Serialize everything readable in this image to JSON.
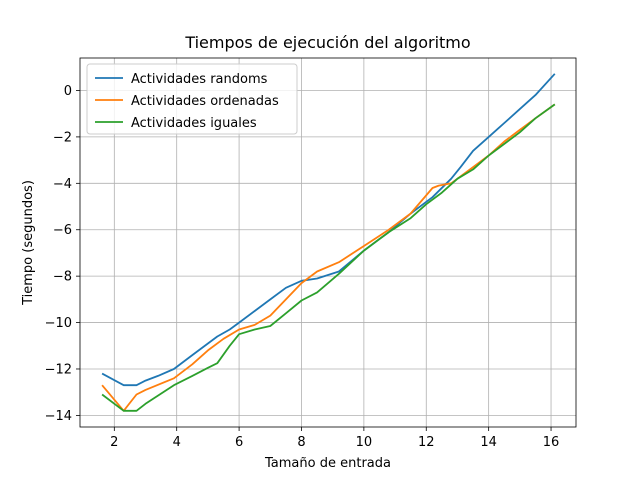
{
  "chart_data": {
    "type": "line",
    "title": "Tiempos de ejecución del algoritmo",
    "xlabel": "Tamaño de entrada",
    "ylabel": "Tiempo (segundos)",
    "xlim": [
      0.9,
      16.8
    ],
    "ylim": [
      -14.5,
      1.4
    ],
    "xticks": [
      2,
      4,
      6,
      8,
      10,
      12,
      14,
      16
    ],
    "yticks": [
      0,
      -2,
      -4,
      -6,
      -8,
      -10,
      -12,
      -14
    ],
    "grid": true,
    "legend_position": "top-left",
    "series": [
      {
        "name": "Actividades randoms",
        "color": "#1f77b4",
        "x": [
          1.61,
          2.3,
          2.71,
          3.0,
          3.4,
          3.91,
          4.5,
          5.0,
          5.3,
          5.7,
          6.0,
          6.5,
          7.0,
          7.5,
          8.0,
          8.5,
          9.2,
          10.0,
          10.8,
          11.5,
          12.2,
          12.8,
          13.1,
          13.5,
          14.0,
          14.5,
          15.0,
          15.5,
          16.12
        ],
        "y": [
          -12.2,
          -12.7,
          -12.7,
          -12.5,
          -12.3,
          -12.0,
          -11.4,
          -10.9,
          -10.6,
          -10.3,
          -10.0,
          -9.5,
          -9.0,
          -8.5,
          -8.2,
          -8.1,
          -7.8,
          -6.9,
          -6.1,
          -5.3,
          -4.6,
          -3.8,
          -3.3,
          -2.6,
          -2.0,
          -1.4,
          -0.8,
          -0.2,
          0.72
        ]
      },
      {
        "name": "Actividades ordenadas",
        "color": "#ff7f0e",
        "x": [
          1.61,
          2.3,
          2.71,
          3.0,
          3.91,
          4.5,
          5.0,
          5.5,
          6.0,
          6.5,
          7.0,
          7.5,
          8.0,
          8.5,
          9.2,
          10.0,
          10.8,
          11.5,
          12.2,
          12.4,
          12.8,
          13.1,
          13.5,
          14.0,
          14.5,
          15.0,
          15.5,
          16.12
        ],
        "y": [
          -12.7,
          -13.8,
          -13.1,
          -12.9,
          -12.4,
          -11.8,
          -11.2,
          -10.7,
          -10.3,
          -10.1,
          -9.7,
          -9.0,
          -8.3,
          -7.8,
          -7.4,
          -6.7,
          -6.0,
          -5.3,
          -4.2,
          -4.1,
          -4.0,
          -3.7,
          -3.3,
          -2.8,
          -2.2,
          -1.7,
          -1.2,
          -0.6
        ]
      },
      {
        "name": "Actividades iguales",
        "color": "#2ca02c",
        "x": [
          1.61,
          2.3,
          2.71,
          3.0,
          3.91,
          4.5,
          5.0,
          5.3,
          5.7,
          6.0,
          6.5,
          7.0,
          7.5,
          8.0,
          8.5,
          9.2,
          10.0,
          10.8,
          11.5,
          12.0,
          12.5,
          13.0,
          13.5,
          14.0,
          14.5,
          15.0,
          15.5,
          16.12
        ],
        "y": [
          -13.1,
          -13.8,
          -13.8,
          -13.5,
          -12.7,
          -12.3,
          -11.95,
          -11.75,
          -11.0,
          -10.5,
          -10.3,
          -10.15,
          -9.6,
          -9.05,
          -8.7,
          -7.9,
          -6.9,
          -6.1,
          -5.5,
          -4.9,
          -4.4,
          -3.8,
          -3.4,
          -2.8,
          -2.3,
          -1.8,
          -1.2,
          -0.6
        ]
      }
    ]
  }
}
